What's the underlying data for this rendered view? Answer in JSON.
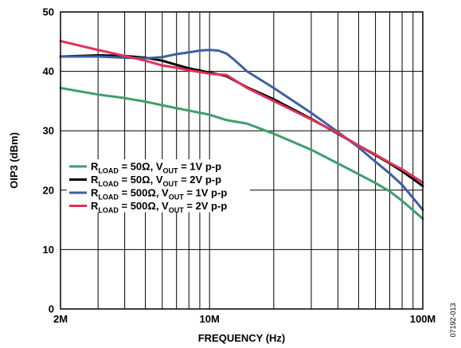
{
  "chart_data": {
    "type": "line",
    "x_scale": "log",
    "xlabel": "FREQUENCY (Hz)",
    "ylabel": "OIP3 (dBm)",
    "xlim": [
      2,
      100
    ],
    "ylim": [
      0,
      50
    ],
    "x_tick_labels": [
      {
        "x": 2,
        "label": "2M"
      },
      {
        "x": 10,
        "label": "10M"
      },
      {
        "x": 100,
        "label": "100M"
      }
    ],
    "y_ticks": [
      0,
      10,
      20,
      30,
      40,
      50
    ],
    "grid": true,
    "legend_position": "lower-left",
    "figure_id": "07192-013",
    "series": [
      {
        "legend": {
          "r": "R",
          "r_sub": "LOAD",
          "r_val": " = 50Ω, ",
          "v": "V",
          "v_sub": "OUT",
          "v_val": " = 1V p-p"
        },
        "color": "#3f9e6e",
        "points": [
          [
            2,
            37.2
          ],
          [
            3,
            36.1
          ],
          [
            4,
            35.5
          ],
          [
            5,
            34.9
          ],
          [
            6,
            34.3
          ],
          [
            7,
            33.8
          ],
          [
            8,
            33.4
          ],
          [
            10,
            32.7
          ],
          [
            12,
            31.8
          ],
          [
            15,
            31.2
          ],
          [
            20,
            29.5
          ],
          [
            30,
            26.8
          ],
          [
            40,
            24.5
          ],
          [
            50,
            22.7
          ],
          [
            60,
            21.2
          ],
          [
            70,
            19.8
          ],
          [
            80,
            18.2
          ],
          [
            100,
            15.2
          ]
        ]
      },
      {
        "legend": {
          "r": "R",
          "r_sub": "LOAD",
          "r_val": " = 50Ω, ",
          "v": "V",
          "v_sub": "OUT",
          "v_val": " = 2V p-p"
        },
        "color": "#000000",
        "points": [
          [
            2,
            42.5
          ],
          [
            3,
            42.7
          ],
          [
            4,
            42.6
          ],
          [
            5,
            42.3
          ],
          [
            6,
            41.8
          ],
          [
            7,
            41.1
          ],
          [
            8,
            40.5
          ],
          [
            10,
            39.8
          ],
          [
            12,
            39.2
          ],
          [
            15,
            37.3
          ],
          [
            20,
            35.3
          ],
          [
            30,
            32.0
          ],
          [
            40,
            29.5
          ],
          [
            50,
            27.5
          ],
          [
            60,
            25.9
          ],
          [
            70,
            24.5
          ],
          [
            80,
            23.2
          ],
          [
            100,
            20.7
          ]
        ]
      },
      {
        "legend": {
          "r": "R",
          "r_sub": "LOAD",
          "r_val": " = 500Ω, ",
          "v": "V",
          "v_sub": "OUT",
          "v_val": " = 1V p-p"
        },
        "color": "#3f5fa0",
        "points": [
          [
            2,
            42.5
          ],
          [
            3,
            42.5
          ],
          [
            4,
            42.3
          ],
          [
            5,
            42.2
          ],
          [
            6,
            42.4
          ],
          [
            7,
            42.9
          ],
          [
            8,
            43.2
          ],
          [
            9,
            43.5
          ],
          [
            10,
            43.6
          ],
          [
            11,
            43.5
          ],
          [
            12,
            43.0
          ],
          [
            13,
            42.0
          ],
          [
            15,
            40.0
          ],
          [
            20,
            37.2
          ],
          [
            30,
            33.0
          ],
          [
            40,
            29.8
          ],
          [
            50,
            27.2
          ],
          [
            60,
            24.8
          ],
          [
            70,
            22.8
          ],
          [
            80,
            20.9
          ],
          [
            100,
            16.7
          ]
        ]
      },
      {
        "legend": {
          "r": "R",
          "r_sub": "LOAD",
          "r_val": " = 500Ω, ",
          "v": "V",
          "v_sub": "OUT",
          "v_val": " = 2V p-p"
        },
        "color": "#e0325a",
        "points": [
          [
            2,
            45.1
          ],
          [
            3,
            43.6
          ],
          [
            4,
            42.6
          ],
          [
            5,
            41.8
          ],
          [
            6,
            41.0
          ],
          [
            7,
            40.6
          ],
          [
            8,
            40.2
          ],
          [
            10,
            39.6
          ],
          [
            12,
            39.4
          ],
          [
            15,
            37.2
          ],
          [
            20,
            35.0
          ],
          [
            30,
            31.9
          ],
          [
            40,
            29.6
          ],
          [
            50,
            27.5
          ],
          [
            60,
            26.0
          ],
          [
            70,
            24.6
          ],
          [
            80,
            23.5
          ],
          [
            100,
            21.3
          ]
        ]
      }
    ]
  }
}
